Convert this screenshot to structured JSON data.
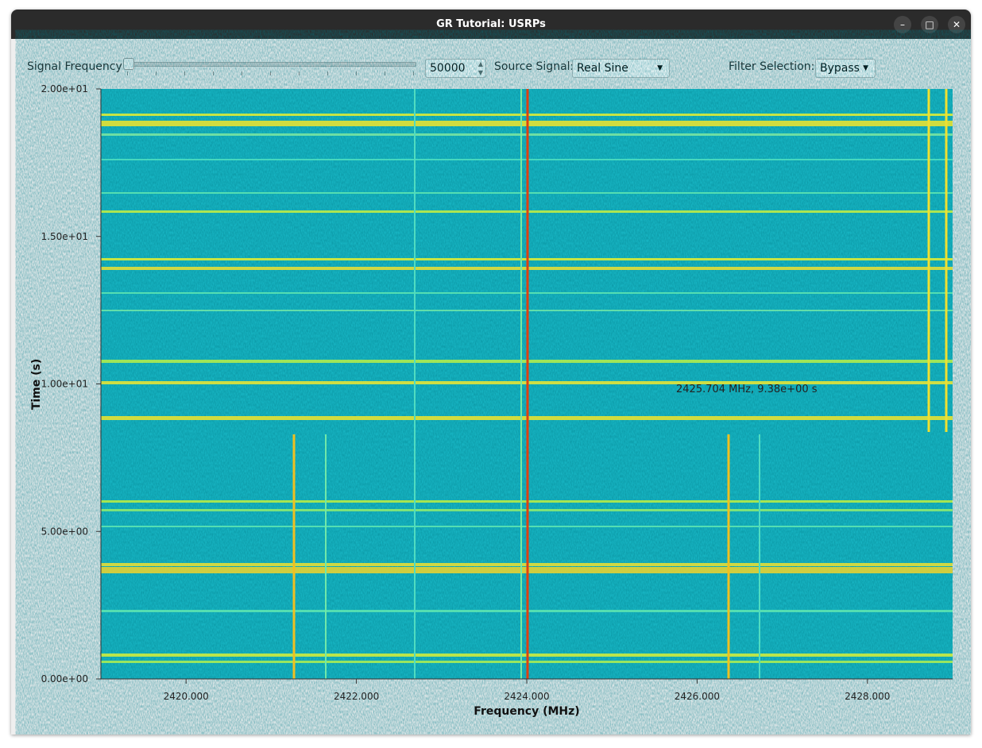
{
  "window": {
    "title": "GR Tutorial: USRPs"
  },
  "controls": {
    "signal_frequency": {
      "label": "Signal Frequency",
      "value": 50000
    },
    "source_signal": {
      "label": "Source Signal:",
      "value": "Real Sine"
    },
    "filter_selection": {
      "label": "Filter Selection:",
      "value": "Bypass"
    }
  },
  "chart_data": {
    "type": "waterfall",
    "xlabel": "Frequency (MHz)",
    "ylabel": "Time (s)",
    "annotation": "2425.704 MHz, 9.38e+00 s",
    "xlim": [
      2419,
      2429
    ],
    "xticks": [
      {
        "value": 2420,
        "label": "2420.000"
      },
      {
        "value": 2422,
        "label": "2422.000"
      },
      {
        "value": 2424,
        "label": "2424.000"
      },
      {
        "value": 2426,
        "label": "2426.000"
      },
      {
        "value": 2428,
        "label": "2428.000"
      }
    ],
    "ylim": [
      0,
      20
    ],
    "yticks": [
      {
        "value": 0,
        "label": "0.00e+00"
      },
      {
        "value": 5,
        "label": "5.00e+00"
      },
      {
        "value": 10,
        "label": "1.00e+01"
      },
      {
        "value": 15,
        "label": "1.50e+01"
      },
      {
        "value": 20,
        "label": "2.00e+01"
      }
    ]
  }
}
